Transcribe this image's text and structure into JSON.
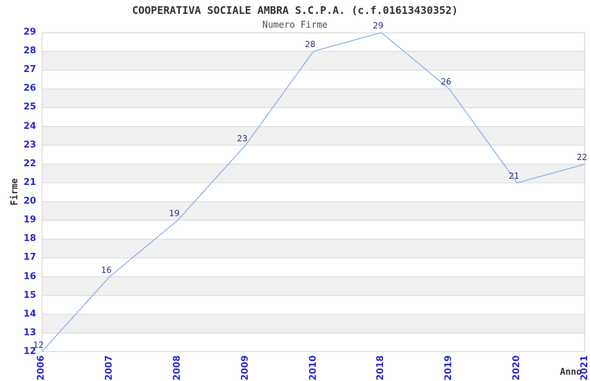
{
  "chart_data": {
    "type": "line",
    "title": "COOPERATIVA SOCIALE AMBRA S.C.P.A. (c.f.01613430352)",
    "subtitle": "Numero Firme",
    "xlabel": "Anno",
    "ylabel": "Firme",
    "categories": [
      "2006",
      "2007",
      "2008",
      "2009",
      "2010",
      "2018",
      "2019",
      "2020",
      "2021"
    ],
    "series": [
      {
        "name": "Numero Firme",
        "values": [
          12,
          16,
          19,
          23,
          28,
          29,
          26,
          21,
          22
        ]
      }
    ],
    "point_labels": [
      "12",
      "16",
      "19",
      "23",
      "28",
      "29",
      "26",
      "21",
      "22"
    ],
    "ylim": [
      12,
      29
    ],
    "ytick_step": 1,
    "grid": "horizontal-bands",
    "legend": "none",
    "colors": {
      "line": "#88b2e8",
      "tick_labels": "#2b2bd2",
      "point_labels": "#2e2e87",
      "title": "#333333",
      "subtitle": "#4d4d4d",
      "axis_titles": "#333333",
      "band_light": "#ffffff",
      "band_dark": "#f0f0f0",
      "gridline": "#d8d8d8",
      "border": "#d4d4d4",
      "background": "#ffffff"
    }
  }
}
